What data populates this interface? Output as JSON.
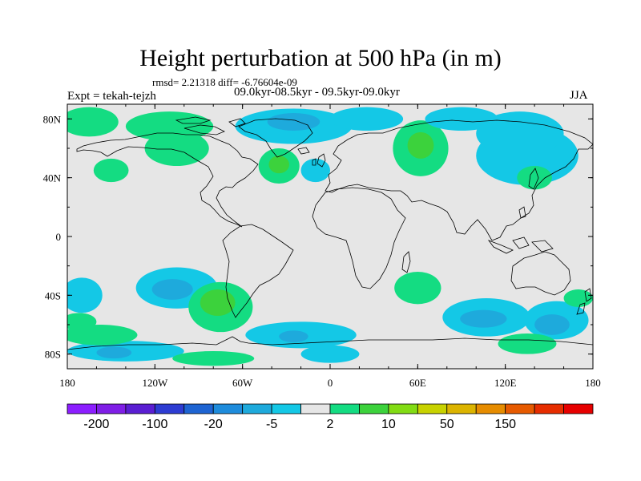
{
  "title": "Height perturbation at 500 hPa (in m)",
  "stats": "rmsd= 2.21318 diff= -6.76604e-09",
  "experiment": "Expt = tekah-tejzh",
  "period": "09.0kyr-08.5kyr - 09.5kyr-09.0kyr",
  "season": "JJA",
  "map": {
    "lon_range": [
      -180,
      180
    ],
    "lat_range": [
      -90,
      90
    ],
    "lon_ticks": [
      {
        "value": -180,
        "label": "180"
      },
      {
        "value": -120,
        "label": "120W"
      },
      {
        "value": -60,
        "label": "60W"
      },
      {
        "value": 0,
        "label": "0"
      },
      {
        "value": 60,
        "label": "60E"
      },
      {
        "value": 120,
        "label": "120E"
      },
      {
        "value": 180,
        "label": "180"
      }
    ],
    "lat_ticks": [
      {
        "value": 80,
        "label": "80N"
      },
      {
        "value": 40,
        "label": "40N"
      },
      {
        "value": 0,
        "label": "0"
      },
      {
        "value": -40,
        "label": "40S"
      },
      {
        "value": -80,
        "label": "80S"
      }
    ],
    "background_color": "#e6e6e6"
  },
  "colorbar": {
    "colors": [
      "#8c1eff",
      "#7f1ee6",
      "#5a1ed2",
      "#2d3cd2",
      "#1e64d2",
      "#1e8cdc",
      "#1eaadc",
      "#14c8e6",
      "#e6e6e6",
      "#14dc82",
      "#3cd23c",
      "#82dc14",
      "#c8d200",
      "#dcb400",
      "#e68c00",
      "#e65a00",
      "#e62d00",
      "#e60000"
    ],
    "labels": [
      {
        "boundary": 1,
        "text": "-200"
      },
      {
        "boundary": 3,
        "text": "-100"
      },
      {
        "boundary": 5,
        "text": "-20"
      },
      {
        "boundary": 7,
        "text": "-5"
      },
      {
        "boundary": 9,
        "text": "2"
      },
      {
        "boundary": 11,
        "text": "10"
      },
      {
        "boundary": 13,
        "text": "50"
      },
      {
        "boundary": 15,
        "text": "150"
      }
    ]
  },
  "fields": [
    {
      "lon": 155,
      "lat": -57,
      "rx": 22,
      "ry": 13,
      "level": "cyan"
    },
    {
      "lon": 152,
      "lat": -60,
      "rx": 12,
      "ry": 7,
      "level": "blue"
    },
    {
      "lon": 107,
      "lat": -55,
      "rx": 30,
      "ry": 13,
      "level": "cyan"
    },
    {
      "lon": 105,
      "lat": -56,
      "rx": 16,
      "ry": 6,
      "level": "blue"
    },
    {
      "lon": 135,
      "lat": -73,
      "rx": 20,
      "ry": 7,
      "level": "green"
    },
    {
      "lon": 170,
      "lat": -42,
      "rx": 10,
      "ry": 6,
      "level": "green"
    },
    {
      "lon": 60,
      "lat": -35,
      "rx": 16,
      "ry": 11,
      "level": "green"
    },
    {
      "lon": -105,
      "lat": -35,
      "rx": 28,
      "ry": 14,
      "level": "cyan"
    },
    {
      "lon": -108,
      "lat": -36,
      "rx": 14,
      "ry": 7,
      "level": "blue"
    },
    {
      "lon": -75,
      "lat": -48,
      "rx": 22,
      "ry": 17,
      "level": "green"
    },
    {
      "lon": -77,
      "lat": -45,
      "rx": 12,
      "ry": 9,
      "level": "lime"
    },
    {
      "lon": -20,
      "lat": -67,
      "rx": 38,
      "ry": 9,
      "level": "cyan"
    },
    {
      "lon": -25,
      "lat": -68,
      "rx": 10,
      "ry": 4,
      "level": "blue"
    },
    {
      "lon": 0,
      "lat": -80,
      "rx": 20,
      "ry": 6,
      "level": "cyan"
    },
    {
      "lon": -140,
      "lat": -78,
      "rx": 40,
      "ry": 7,
      "level": "cyan"
    },
    {
      "lon": -148,
      "lat": -79,
      "rx": 12,
      "ry": 4,
      "level": "blue"
    },
    {
      "lon": -80,
      "lat": -83,
      "rx": 28,
      "ry": 5,
      "level": "green"
    },
    {
      "lon": -170,
      "lat": -40,
      "rx": 14,
      "ry": 12,
      "level": "cyan"
    },
    {
      "lon": -172,
      "lat": -58,
      "rx": 12,
      "ry": 6,
      "level": "green"
    },
    {
      "lon": -158,
      "lat": -67,
      "rx": 26,
      "ry": 7,
      "level": "green"
    },
    {
      "lon": 62,
      "lat": 60,
      "rx": 19,
      "ry": 19,
      "level": "green"
    },
    {
      "lon": 62,
      "lat": 62,
      "rx": 9,
      "ry": 9,
      "level": "lime"
    },
    {
      "lon": 135,
      "lat": 55,
      "rx": 35,
      "ry": 20,
      "level": "cyan"
    },
    {
      "lon": 130,
      "lat": 70,
      "rx": 30,
      "ry": 15,
      "level": "cyan"
    },
    {
      "lon": 140,
      "lat": 40,
      "rx": 12,
      "ry": 8,
      "level": "green"
    },
    {
      "lon": -35,
      "lat": 48,
      "rx": 14,
      "ry": 12,
      "level": "green"
    },
    {
      "lon": -35,
      "lat": 49,
      "rx": 7,
      "ry": 6,
      "level": "lime"
    },
    {
      "lon": -10,
      "lat": 45,
      "rx": 10,
      "ry": 8,
      "level": "cyan"
    },
    {
      "lon": -150,
      "lat": 45,
      "rx": 12,
      "ry": 8,
      "level": "green"
    },
    {
      "lon": -165,
      "lat": 78,
      "rx": 20,
      "ry": 10,
      "level": "green"
    },
    {
      "lon": -105,
      "lat": 60,
      "rx": 22,
      "ry": 12,
      "level": "green"
    },
    {
      "lon": -110,
      "lat": 75,
      "rx": 30,
      "ry": 10,
      "level": "green"
    },
    {
      "lon": -25,
      "lat": 75,
      "rx": 40,
      "ry": 12,
      "level": "cyan"
    },
    {
      "lon": -25,
      "lat": 78,
      "rx": 18,
      "ry": 6,
      "level": "blue"
    },
    {
      "lon": 25,
      "lat": 80,
      "rx": 25,
      "ry": 8,
      "level": "cyan"
    },
    {
      "lon": 90,
      "lat": 80,
      "rx": 25,
      "ry": 8,
      "level": "cyan"
    }
  ]
}
